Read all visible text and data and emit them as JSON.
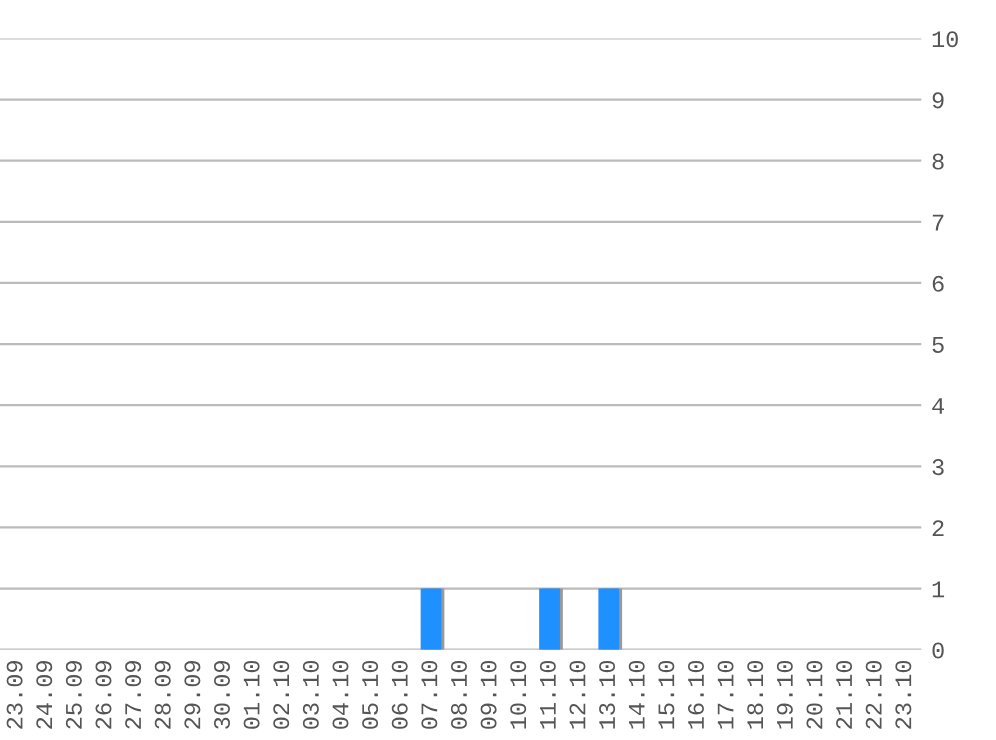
{
  "chart_data": {
    "type": "bar",
    "categories": [
      "23.09",
      "24.09",
      "25.09",
      "26.09",
      "27.09",
      "28.09",
      "29.09",
      "30.09",
      "01.10",
      "02.10",
      "03.10",
      "04.10",
      "05.10",
      "06.10",
      "07.10",
      "08.10",
      "09.10",
      "10.10",
      "11.10",
      "12.10",
      "13.10",
      "14.10",
      "15.10",
      "16.10",
      "17.10",
      "18.10",
      "19.10",
      "20.10",
      "21.10",
      "22.10",
      "23.10"
    ],
    "values": [
      0,
      0,
      0,
      0,
      0,
      0,
      0,
      0,
      0,
      0,
      0,
      0,
      0,
      0,
      1,
      0,
      0,
      0,
      1,
      0,
      1,
      0,
      0,
      0,
      0,
      0,
      0,
      0,
      0,
      0,
      0
    ],
    "color": "#1e90ff",
    "ylim": [
      0,
      10
    ],
    "yticks": [
      0,
      1,
      2,
      3,
      4,
      5,
      6,
      7,
      8,
      9,
      10
    ],
    "grid": "y"
  }
}
